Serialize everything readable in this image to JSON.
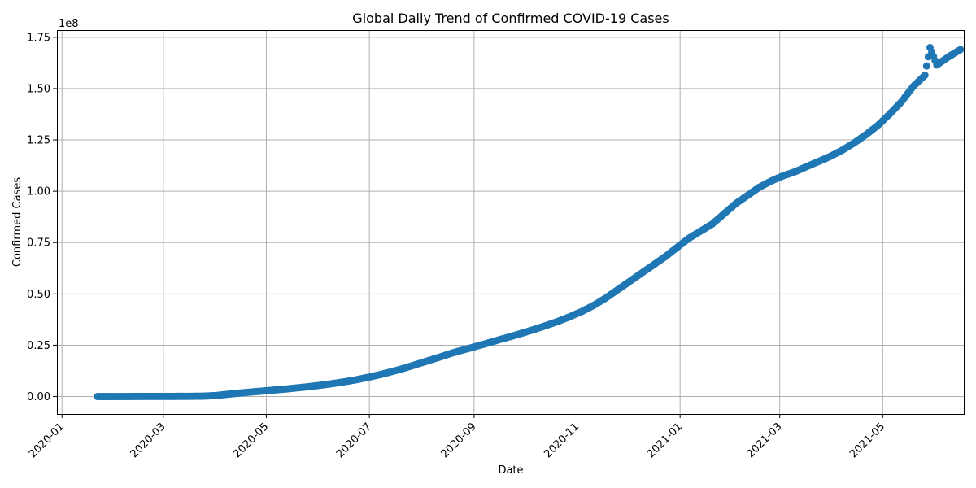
{
  "chart_data": {
    "type": "scatter",
    "title": "Global Daily Trend of Confirmed COVID-19 Cases",
    "xlabel": "Date",
    "ylabel": "Confirmed Cases",
    "y_offset_text": "1e8",
    "marker_color": "#1f77b4",
    "grid": true,
    "legend": "none",
    "x_range": [
      "2019-12-29",
      "2021-06-18"
    ],
    "y_range": [
      -8500000,
      178500000
    ],
    "x_ticks": [
      {
        "date": "2020-01-01",
        "label": "2020-01"
      },
      {
        "date": "2020-03-01",
        "label": "2020-03"
      },
      {
        "date": "2020-05-01",
        "label": "2020-05"
      },
      {
        "date": "2020-07-01",
        "label": "2020-07"
      },
      {
        "date": "2020-09-01",
        "label": "2020-09"
      },
      {
        "date": "2020-11-01",
        "label": "2020-11"
      },
      {
        "date": "2021-01-01",
        "label": "2021-01"
      },
      {
        "date": "2021-03-01",
        "label": "2021-03"
      },
      {
        "date": "2021-05-01",
        "label": "2021-05"
      }
    ],
    "y_ticks": [
      {
        "value": 0,
        "label": "0.00"
      },
      {
        "value": 25000000,
        "label": "0.25"
      },
      {
        "value": 50000000,
        "label": "0.50"
      },
      {
        "value": 75000000,
        "label": "0.75"
      },
      {
        "value": 100000000,
        "label": "1.00"
      },
      {
        "value": 125000000,
        "label": "1.25"
      },
      {
        "value": 150000000,
        "label": "1.50"
      },
      {
        "value": 175000000,
        "label": "1.75"
      }
    ],
    "series": [
      {
        "x_start": "2020-01-22",
        "x_step_days": 7,
        "values": [
          600,
          6200,
          28000,
          45000,
          68000,
          79000,
          84000,
          95000,
          130000,
          200000,
          500000,
          1100000,
          1700000,
          2200000,
          2700000,
          3200000,
          3700000,
          4300000,
          4900000,
          5600000,
          6400000,
          7300000,
          8300000,
          9500000,
          10800000,
          12300000,
          13900000,
          15700000,
          17500000,
          19300000,
          21200000,
          22800000,
          24400000,
          26000000,
          27700000,
          29300000,
          31000000,
          32800000,
          34700000,
          36700000,
          39000000,
          41500000,
          44500000,
          48000000,
          52000000,
          56000000,
          60000000,
          64000000,
          68000000,
          72500000,
          77000000,
          80500000,
          84000000,
          89000000,
          94000000,
          98000000,
          102000000,
          105000000,
          107500000,
          109500000,
          112000000,
          114500000,
          117000000,
          120000000,
          123500000,
          127500000,
          132000000,
          137500000,
          143500000,
          151000000,
          156500000,
          161500000,
          165500000,
          169000000
        ],
        "extra_points": [
          [
            "2021-05-29",
            170000000
          ]
        ]
      }
    ]
  }
}
